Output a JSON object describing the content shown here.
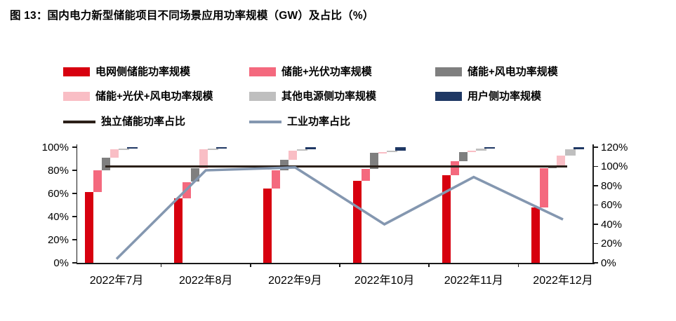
{
  "title": "图 13：国内电力新型储能项目不同场景应用功率规模（GW）及占比（%）",
  "colors": {
    "red": "#D7000F",
    "rose": "#F4697E",
    "light_pink": "#F9BEC5",
    "dark_gray": "#7F7F7F",
    "light_gray": "#BFBFBF",
    "navy": "#1F3864",
    "black_line": "#2B2019",
    "blue_gray_line": "#8497B0",
    "title_rule": "#B00000",
    "axis": "#1A1A1A"
  },
  "chart_data": {
    "type": "bar",
    "subtype": "cascading stacked share bars with two percentage line series",
    "categories": [
      "2022年7月",
      "2022年8月",
      "2022年9月",
      "2022年10月",
      "2022年11月",
      "2022年12月"
    ],
    "unit": "%",
    "series": [
      {
        "name": "电网侧储能功率规模",
        "color": "red",
        "axis": "left",
        "values": [
          61,
          56,
          64,
          71,
          76,
          48
        ]
      },
      {
        "name": "储能+光伏功率规模",
        "color": "rose",
        "axis": "left",
        "values": [
          19,
          14,
          16,
          10,
          12,
          34
        ]
      },
      {
        "name": "储能+风电功率规模",
        "color": "dark_gray",
        "axis": "left",
        "values": [
          11,
          12,
          9,
          14,
          8,
          2
        ]
      },
      {
        "name": "储能+光伏+风电功率规模",
        "color": "light_pink",
        "axis": "left",
        "values": [
          7,
          16,
          8,
          1,
          1,
          9
        ]
      },
      {
        "name": "其他电源侧功率规模",
        "color": "light_gray",
        "axis": "left",
        "values": [
          1,
          1,
          1,
          1,
          1.5,
          5
        ]
      },
      {
        "name": "用户侧功率规模",
        "color": "navy",
        "axis": "left",
        "values": [
          1,
          1,
          2,
          3,
          1.5,
          2
        ]
      }
    ],
    "line_series": [
      {
        "name": "独立储能功率占比",
        "color": "black_line",
        "axis": "right",
        "values": [
          100,
          100,
          100,
          100,
          100,
          100
        ]
      },
      {
        "name": "工业功率占比",
        "color": "blue_gray_line",
        "axis": "right",
        "values": [
          4,
          96,
          99,
          40,
          89,
          45
        ]
      }
    ],
    "left_axis": {
      "ticks": [
        "0%",
        "20%",
        "40%",
        "60%",
        "80%",
        "100%"
      ],
      "min": 0,
      "max": 100
    },
    "right_axis": {
      "ticks": [
        "0%",
        "20%",
        "40%",
        "60%",
        "80%",
        "100%",
        "120%"
      ],
      "min": 0,
      "max": 120
    },
    "legend_position": "top",
    "grid": false
  }
}
